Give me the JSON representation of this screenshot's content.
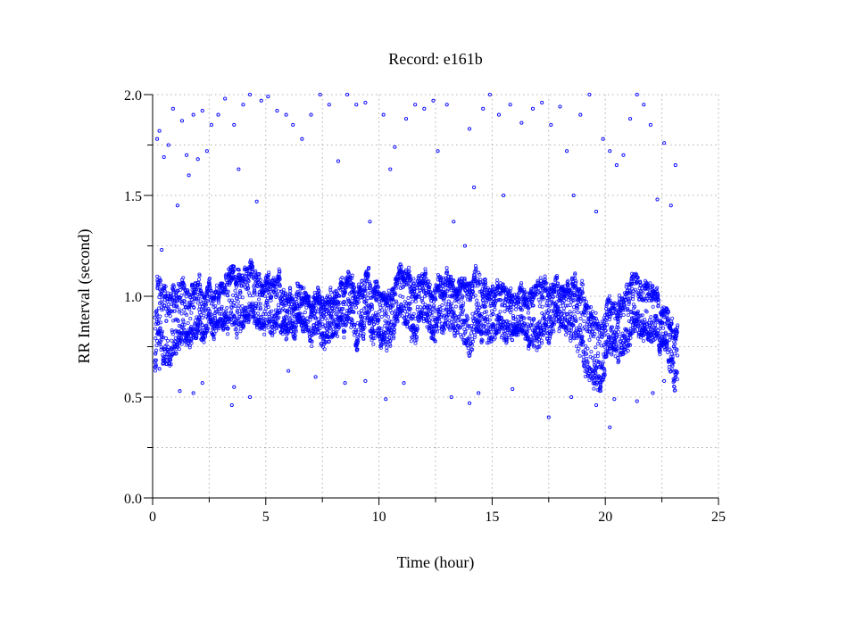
{
  "chart_data": {
    "type": "scatter",
    "title": "Record:  e161b",
    "xlabel": "Time (hour)",
    "ylabel": "RR Interval (second)",
    "xlim": [
      0,
      25
    ],
    "ylim": [
      0,
      2
    ],
    "x_ticks": [
      "0",
      "5",
      "10",
      "15",
      "20",
      "25"
    ],
    "x_tick_values": [
      0,
      5,
      10,
      15,
      20,
      25
    ],
    "x_minor_tick_values": [
      2.5,
      7.5,
      12.5,
      17.5,
      22.5
    ],
    "y_ticks": [
      "0.0",
      "0.5",
      "1.0",
      "1.5",
      "2.0"
    ],
    "y_tick_values": [
      0,
      0.5,
      1.0,
      1.5,
      2.0
    ],
    "y_minor_tick_values": [
      0.25,
      0.75,
      1.25,
      1.75
    ],
    "grid": true,
    "point_color": "#0000ff",
    "record_span_hours": [
      0.1,
      23.2
    ],
    "series_summary_note_hidden": "",
    "trend": [
      [
        0.2,
        0.88,
        0.75,
        1.05
      ],
      [
        0.5,
        0.85,
        0.65,
        1.05
      ],
      [
        1.0,
        0.92,
        0.75,
        1.08
      ],
      [
        1.5,
        0.88,
        0.78,
        1.05
      ],
      [
        2.0,
        0.9,
        0.78,
        1.05
      ],
      [
        2.5,
        0.92,
        0.8,
        1.02
      ],
      [
        3.0,
        0.98,
        0.85,
        1.05
      ],
      [
        3.5,
        1.05,
        0.85,
        1.15
      ],
      [
        4.0,
        0.9,
        0.78,
        1.05
      ],
      [
        4.5,
        1.0,
        0.85,
        1.1
      ],
      [
        5.0,
        1.0,
        0.85,
        1.1
      ],
      [
        5.5,
        0.98,
        0.85,
        1.1
      ],
      [
        6.0,
        0.96,
        0.88,
        1.05
      ],
      [
        6.5,
        0.95,
        0.85,
        1.05
      ],
      [
        7.0,
        0.95,
        0.82,
        1.0
      ],
      [
        7.5,
        0.92,
        0.78,
        1.0
      ],
      [
        8.0,
        0.92,
        0.8,
        1.0
      ],
      [
        8.5,
        0.98,
        0.85,
        1.08
      ],
      [
        9.0,
        0.95,
        0.8,
        1.05
      ],
      [
        9.5,
        1.0,
        0.85,
        1.1
      ],
      [
        10.0,
        0.98,
        0.8,
        1.08
      ],
      [
        10.5,
        0.9,
        0.75,
        1.0
      ],
      [
        11.0,
        1.0,
        0.85,
        1.1
      ],
      [
        11.5,
        0.97,
        0.8,
        1.08
      ],
      [
        12.0,
        1.0,
        0.88,
        1.08
      ],
      [
        12.5,
        0.95,
        0.8,
        1.05
      ],
      [
        13.0,
        1.0,
        0.85,
        1.1
      ],
      [
        13.5,
        0.98,
        0.85,
        1.08
      ],
      [
        14.0,
        0.95,
        0.7,
        1.08
      ],
      [
        14.5,
        0.98,
        0.8,
        1.1
      ],
      [
        15.0,
        0.95,
        0.8,
        1.05
      ],
      [
        15.5,
        0.92,
        0.78,
        1.05
      ],
      [
        16.0,
        0.92,
        0.8,
        1.0
      ],
      [
        16.5,
        0.95,
        0.82,
        1.05
      ],
      [
        17.0,
        0.92,
        0.7,
        1.03
      ],
      [
        17.5,
        0.95,
        0.8,
        1.05
      ],
      [
        18.0,
        0.95,
        0.85,
        1.03
      ],
      [
        18.5,
        0.95,
        0.8,
        1.05
      ],
      [
        19.0,
        0.88,
        0.7,
        1.05
      ],
      [
        19.5,
        0.8,
        0.6,
        0.95
      ],
      [
        20.0,
        0.75,
        0.62,
        0.9
      ],
      [
        20.5,
        0.85,
        0.7,
        0.97
      ],
      [
        21.0,
        0.95,
        0.78,
        1.1
      ],
      [
        21.5,
        0.92,
        0.8,
        1.05
      ],
      [
        22.0,
        0.98,
        0.82,
        1.1
      ],
      [
        22.5,
        0.85,
        0.75,
        0.95
      ],
      [
        23.0,
        0.8,
        0.65,
        0.92
      ],
      [
        23.2,
        0.8,
        0.62,
        0.92
      ]
    ],
    "outliers": [
      [
        0.2,
        1.78
      ],
      [
        0.3,
        1.82
      ],
      [
        0.4,
        1.23
      ],
      [
        0.5,
        1.69
      ],
      [
        0.7,
        1.75
      ],
      [
        0.9,
        1.93
      ],
      [
        1.1,
        1.45
      ],
      [
        1.3,
        1.87
      ],
      [
        1.5,
        1.7
      ],
      [
        1.6,
        1.6
      ],
      [
        1.8,
        1.9
      ],
      [
        2.0,
        1.68
      ],
      [
        2.2,
        1.92
      ],
      [
        2.4,
        1.72
      ],
      [
        2.6,
        1.85
      ],
      [
        2.9,
        1.9
      ],
      [
        3.2,
        1.98
      ],
      [
        3.6,
        1.85
      ],
      [
        3.8,
        1.63
      ],
      [
        4.0,
        1.95
      ],
      [
        4.3,
        2.0
      ],
      [
        4.6,
        1.47
      ],
      [
        4.8,
        1.97
      ],
      [
        5.1,
        1.99
      ],
      [
        5.5,
        1.92
      ],
      [
        5.9,
        1.9
      ],
      [
        6.2,
        1.85
      ],
      [
        6.6,
        1.78
      ],
      [
        7.0,
        1.9
      ],
      [
        7.4,
        2.0
      ],
      [
        7.8,
        1.95
      ],
      [
        8.2,
        1.67
      ],
      [
        8.6,
        2.0
      ],
      [
        9.0,
        1.95
      ],
      [
        9.4,
        1.96
      ],
      [
        9.6,
        1.37
      ],
      [
        10.2,
        1.9
      ],
      [
        10.5,
        1.63
      ],
      [
        10.7,
        1.74
      ],
      [
        11.2,
        1.88
      ],
      [
        11.6,
        1.95
      ],
      [
        12.0,
        1.93
      ],
      [
        12.4,
        1.97
      ],
      [
        12.6,
        1.72
      ],
      [
        13.0,
        1.95
      ],
      [
        13.3,
        1.37
      ],
      [
        13.8,
        1.25
      ],
      [
        14.0,
        1.83
      ],
      [
        14.2,
        1.54
      ],
      [
        14.6,
        1.93
      ],
      [
        14.9,
        2.0
      ],
      [
        15.3,
        1.9
      ],
      [
        15.5,
        1.5
      ],
      [
        15.8,
        1.95
      ],
      [
        16.3,
        1.86
      ],
      [
        16.8,
        1.93
      ],
      [
        17.2,
        1.96
      ],
      [
        17.6,
        1.85
      ],
      [
        18.0,
        1.94
      ],
      [
        18.3,
        1.72
      ],
      [
        18.6,
        1.5
      ],
      [
        18.9,
        1.9
      ],
      [
        19.3,
        2.0
      ],
      [
        19.6,
        1.42
      ],
      [
        19.9,
        1.78
      ],
      [
        20.2,
        1.72
      ],
      [
        20.5,
        1.65
      ],
      [
        20.8,
        1.7
      ],
      [
        21.1,
        1.88
      ],
      [
        21.4,
        2.0
      ],
      [
        21.7,
        1.95
      ],
      [
        22.0,
        1.85
      ],
      [
        22.3,
        1.48
      ],
      [
        22.6,
        1.76
      ],
      [
        22.9,
        1.45
      ],
      [
        23.1,
        1.65
      ],
      [
        0.3,
        0.64
      ],
      [
        1.2,
        0.53
      ],
      [
        1.8,
        0.52
      ],
      [
        2.2,
        0.57
      ],
      [
        3.5,
        0.46
      ],
      [
        3.6,
        0.55
      ],
      [
        4.3,
        0.5
      ],
      [
        6.0,
        0.63
      ],
      [
        7.2,
        0.6
      ],
      [
        8.5,
        0.57
      ],
      [
        9.4,
        0.58
      ],
      [
        10.3,
        0.49
      ],
      [
        11.1,
        0.57
      ],
      [
        13.2,
        0.5
      ],
      [
        14.0,
        0.47
      ],
      [
        14.4,
        0.52
      ],
      [
        15.9,
        0.54
      ],
      [
        17.5,
        0.4
      ],
      [
        18.5,
        0.5
      ],
      [
        19.6,
        0.46
      ],
      [
        20.2,
        0.35
      ],
      [
        20.4,
        0.49
      ],
      [
        21.4,
        0.48
      ],
      [
        22.1,
        0.52
      ],
      [
        22.6,
        0.58
      ]
    ]
  }
}
